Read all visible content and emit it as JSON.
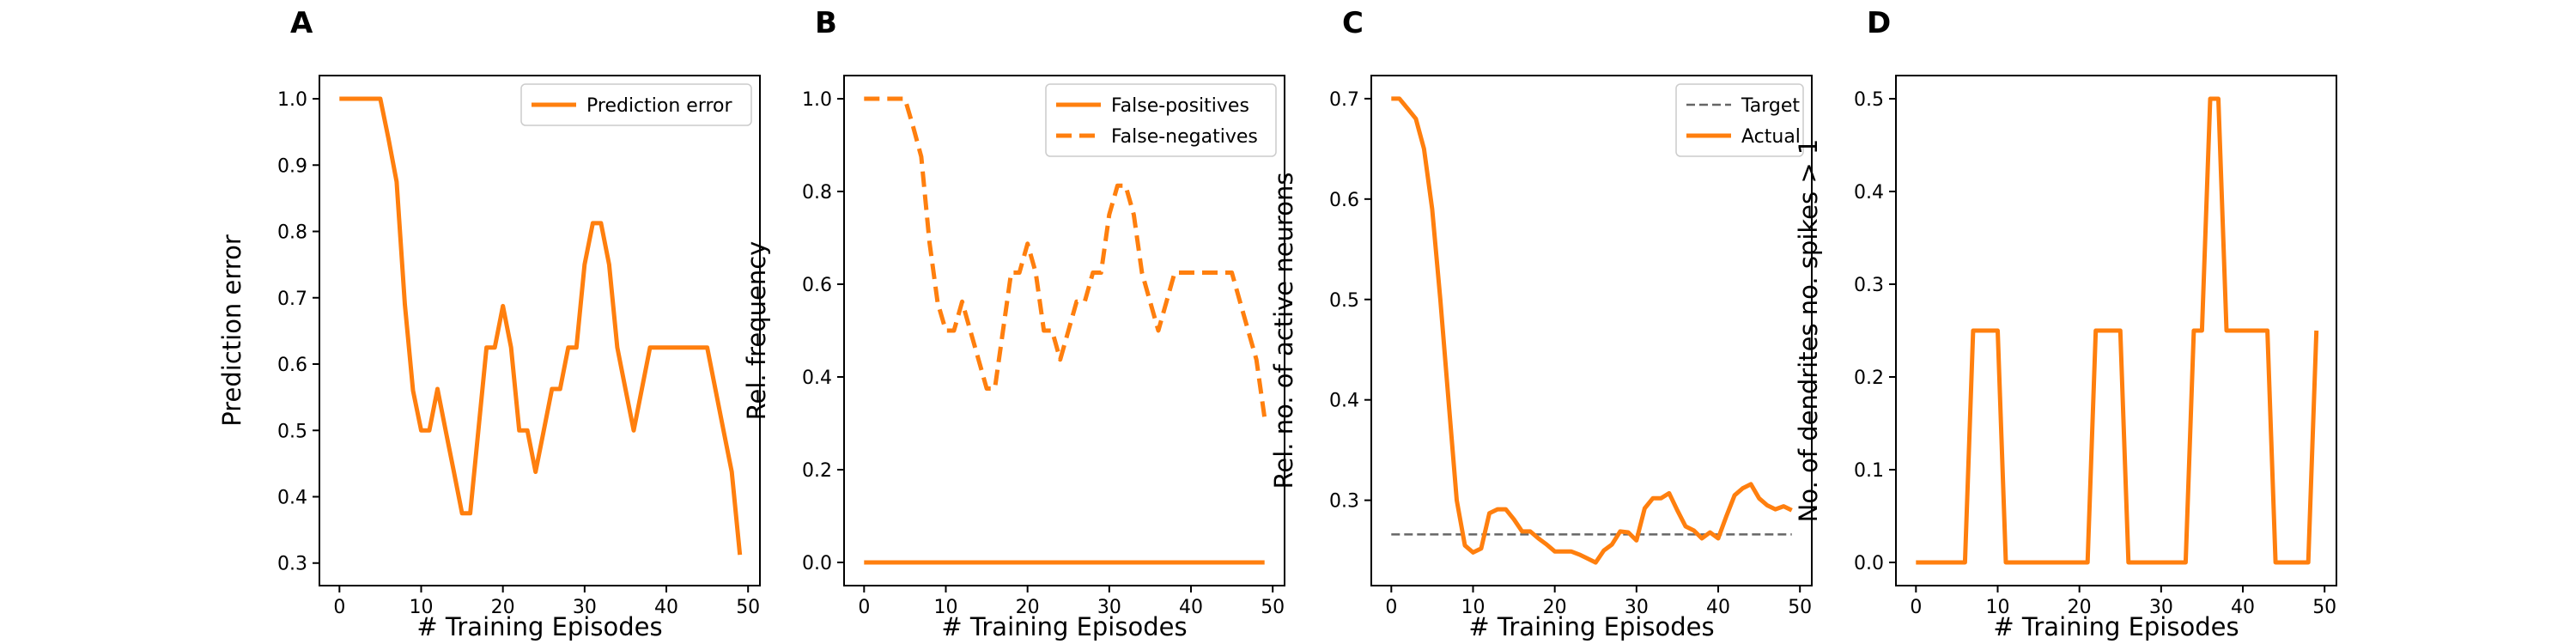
{
  "colors": {
    "series": "#ff7f0e",
    "target": "#666666"
  },
  "chart_data": [
    {
      "panel": "A",
      "type": "line",
      "xlabel": "# Training Episodes",
      "ylabel": "Prediction error",
      "xlim": [
        -2.45,
        51.45
      ],
      "ylim": [
        0.266,
        1.035
      ],
      "xticks": [
        0,
        10,
        20,
        30,
        40,
        50
      ],
      "xtick_labels": [
        "0",
        "10",
        "20",
        "30",
        "40",
        "50"
      ],
      "yticks": [
        0.3,
        0.4,
        0.5,
        0.6,
        0.7,
        0.8,
        0.9,
        1.0
      ],
      "ytick_labels": [
        "0.3",
        "0.4",
        "0.5",
        "0.6",
        "0.7",
        "0.8",
        "0.9",
        "1.0"
      ],
      "grid": false,
      "legend": "top-right",
      "series": [
        {
          "name": "Prediction error",
          "style": "solid",
          "x": [
            0,
            1,
            2,
            3,
            4,
            5,
            6,
            7,
            8,
            9,
            10,
            11,
            12,
            13,
            14,
            15,
            16,
            17,
            18,
            19,
            20,
            21,
            22,
            23,
            24,
            25,
            26,
            27,
            28,
            29,
            30,
            31,
            32,
            33,
            34,
            35,
            36,
            37,
            38,
            39,
            40,
            41,
            42,
            43,
            44,
            45,
            46,
            47,
            48,
            49
          ],
          "y": [
            1.0,
            1.0,
            1.0,
            1.0,
            1.0,
            1.0,
            0.94,
            0.875,
            0.69,
            0.56,
            0.5,
            0.5,
            0.5625,
            0.5,
            0.4375,
            0.375,
            0.375,
            0.5,
            0.625,
            0.625,
            0.6875,
            0.625,
            0.5,
            0.5,
            0.4375,
            0.5,
            0.5625,
            0.5625,
            0.625,
            0.625,
            0.75,
            0.8125,
            0.8125,
            0.75,
            0.625,
            0.5625,
            0.5,
            0.5625,
            0.625,
            0.625,
            0.625,
            0.625,
            0.625,
            0.625,
            0.625,
            0.625,
            0.5625,
            0.5,
            0.4375,
            0.3125
          ]
        }
      ]
    },
    {
      "panel": "B",
      "type": "line",
      "xlabel": "# Training Episodes",
      "ylabel": "Rel. frequency",
      "xlim": [
        -2.45,
        51.45
      ],
      "ylim": [
        -0.05,
        1.05
      ],
      "xticks": [
        0,
        10,
        20,
        30,
        40,
        50
      ],
      "xtick_labels": [
        "0",
        "10",
        "20",
        "30",
        "40",
        "50"
      ],
      "yticks": [
        0.0,
        0.2,
        0.4,
        0.6,
        0.8,
        1.0
      ],
      "ytick_labels": [
        "0.0",
        "0.2",
        "0.4",
        "0.6",
        "0.8",
        "1.0"
      ],
      "grid": false,
      "legend": "top-right",
      "series": [
        {
          "name": "False-positives",
          "style": "solid",
          "x": [
            0,
            49
          ],
          "y": [
            0.0,
            0.0
          ]
        },
        {
          "name": "False-negatives",
          "style": "dashed",
          "x": [
            0,
            1,
            2,
            3,
            4,
            5,
            6,
            7,
            8,
            9,
            10,
            11,
            12,
            13,
            14,
            15,
            16,
            17,
            18,
            19,
            20,
            21,
            22,
            23,
            24,
            25,
            26,
            27,
            28,
            29,
            30,
            31,
            32,
            33,
            34,
            35,
            36,
            37,
            38,
            39,
            40,
            41,
            42,
            43,
            44,
            45,
            46,
            47,
            48,
            49
          ],
          "y": [
            1.0,
            1.0,
            1.0,
            1.0,
            1.0,
            1.0,
            0.94,
            0.875,
            0.69,
            0.56,
            0.5,
            0.5,
            0.5625,
            0.5,
            0.4375,
            0.375,
            0.375,
            0.5,
            0.625,
            0.625,
            0.6875,
            0.625,
            0.5,
            0.5,
            0.4375,
            0.5,
            0.5625,
            0.5625,
            0.625,
            0.625,
            0.75,
            0.8125,
            0.8125,
            0.75,
            0.625,
            0.5625,
            0.5,
            0.5625,
            0.625,
            0.625,
            0.625,
            0.625,
            0.625,
            0.625,
            0.625,
            0.625,
            0.5625,
            0.5,
            0.4375,
            0.3125
          ]
        }
      ]
    },
    {
      "panel": "C",
      "type": "line",
      "xlabel": "# Training Episodes",
      "ylabel": "Rel. no. of active neurons",
      "xlim": [
        -2.45,
        51.45
      ],
      "ylim": [
        0.215,
        0.723
      ],
      "xticks": [
        0,
        10,
        20,
        30,
        40,
        50
      ],
      "xtick_labels": [
        "0",
        "10",
        "20",
        "30",
        "40",
        "50"
      ],
      "yticks": [
        0.3,
        0.4,
        0.5,
        0.6,
        0.7
      ],
      "ytick_labels": [
        "0.3",
        "0.4",
        "0.5",
        "0.6",
        "0.7"
      ],
      "grid": false,
      "legend": "top-right",
      "series": [
        {
          "name": "Target",
          "style": "dashed-thin",
          "x": [
            0,
            49
          ],
          "y": [
            0.266,
            0.266
          ]
        },
        {
          "name": "Actual",
          "style": "solid",
          "x": [
            0,
            1,
            2,
            3,
            4,
            5,
            6,
            7,
            8,
            9,
            10,
            11,
            12,
            13,
            14,
            15,
            16,
            17,
            18,
            19,
            20,
            21,
            22,
            23,
            24,
            25,
            26,
            27,
            28,
            29,
            30,
            31,
            32,
            33,
            34,
            35,
            36,
            37,
            38,
            39,
            40,
            41,
            42,
            43,
            44,
            45,
            46,
            47,
            48,
            49
          ],
          "y": [
            0.7,
            0.7,
            0.69,
            0.68,
            0.65,
            0.59,
            0.5,
            0.4,
            0.3,
            0.255,
            0.248,
            0.252,
            0.287,
            0.291,
            0.291,
            0.281,
            0.269,
            0.269,
            0.262,
            0.256,
            0.249,
            0.249,
            0.249,
            0.246,
            0.242,
            0.238,
            0.25,
            0.256,
            0.269,
            0.268,
            0.26,
            0.292,
            0.302,
            0.302,
            0.307,
            0.29,
            0.274,
            0.27,
            0.262,
            0.268,
            0.262,
            0.284,
            0.305,
            0.312,
            0.316,
            0.302,
            0.295,
            0.291,
            0.294,
            0.29
          ]
        }
      ]
    },
    {
      "panel": "D",
      "type": "line",
      "xlabel": "# Training Episodes",
      "ylabel": "No. of dendrites no. spikes > 1",
      "xlim": [
        -2.45,
        51.45
      ],
      "ylim": [
        -0.025,
        0.525
      ],
      "xticks": [
        0,
        10,
        20,
        30,
        40,
        50
      ],
      "xtick_labels": [
        "0",
        "10",
        "20",
        "30",
        "40",
        "50"
      ],
      "yticks": [
        0.0,
        0.1,
        0.2,
        0.3,
        0.4,
        0.5
      ],
      "ytick_labels": [
        "0.0",
        "0.1",
        "0.2",
        "0.3",
        "0.4",
        "0.5"
      ],
      "grid": false,
      "legend": "none",
      "series": [
        {
          "style": "solid",
          "x": [
            0,
            1,
            2,
            3,
            4,
            5,
            6,
            7,
            8,
            9,
            10,
            11,
            12,
            13,
            14,
            15,
            16,
            17,
            18,
            19,
            20,
            21,
            22,
            23,
            24,
            25,
            26,
            27,
            28,
            29,
            30,
            31,
            32,
            33,
            34,
            35,
            36,
            37,
            38,
            39,
            40,
            41,
            42,
            43,
            44,
            45,
            46,
            47,
            48,
            49
          ],
          "y": [
            0,
            0,
            0,
            0,
            0,
            0,
            0,
            0.25,
            0.25,
            0.25,
            0.25,
            0,
            0,
            0,
            0,
            0,
            0,
            0,
            0,
            0,
            0,
            0,
            0.25,
            0.25,
            0.25,
            0.25,
            0,
            0,
            0,
            0,
            0,
            0,
            0,
            0,
            0.25,
            0.25,
            0.5,
            0.5,
            0.25,
            0.25,
            0.25,
            0.25,
            0.25,
            0.25,
            0,
            0,
            0,
            0,
            0,
            0.25
          ]
        }
      ]
    }
  ]
}
